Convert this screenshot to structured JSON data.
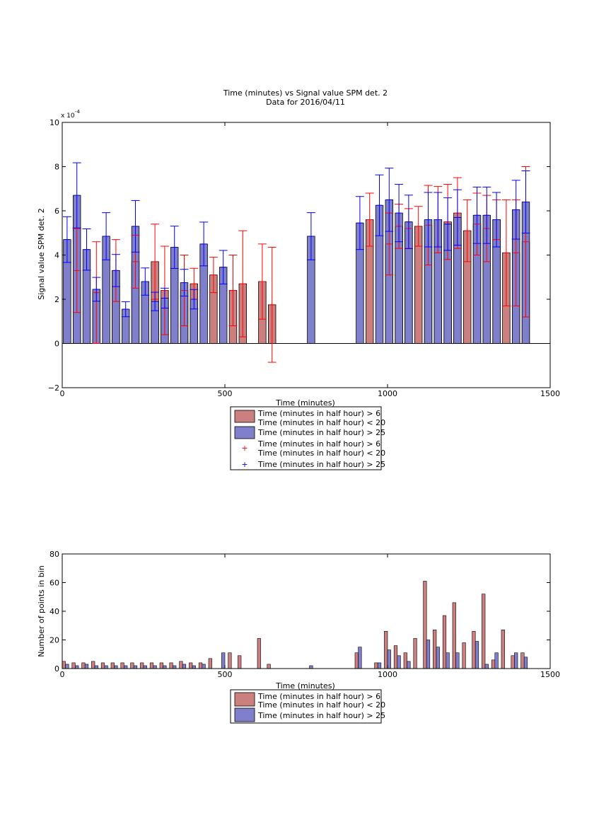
{
  "colors": {
    "red_fill": "#cc7f7f",
    "blue_fill": "#7f7fcc",
    "red_err": "#ff0000",
    "blue_err": "#0000ff"
  },
  "legend_items": {
    "red_bar": "Time (minutes in half hour) > 6",
    "mid_line": "Time (minutes in half hour) < 20",
    "blue_bar": "Time (minutes in half hour) > 25"
  },
  "chart_data": [
    {
      "type": "bar",
      "title": "Time (minutes) vs Signal value SPM det. 2",
      "subtitle": "Data for 2016/04/11",
      "xlabel": "Time (minutes)",
      "ylabel": "Signal value SPM det. 2",
      "exponent_label": "x 10",
      "exponent_power": "-4",
      "xlim": [
        0,
        1500
      ],
      "ylim": [
        -2,
        10
      ],
      "xticks": [
        "0",
        "500",
        "1000",
        "1500"
      ],
      "yticks": [
        "−2",
        "0",
        "2",
        "4",
        "6",
        "8",
        "10"
      ],
      "bar_width": 25,
      "series": [
        {
          "name": "Time (minutes in half hour) > 6",
          "color": "#cc7f7f",
          "x": [
            45,
            105,
            165,
            225,
            285,
            315,
            375,
            405,
            465,
            525,
            555,
            615,
            645,
            945,
            1005,
            1035,
            1065,
            1095,
            1125,
            1155,
            1185,
            1215,
            1245,
            1275,
            1305,
            1335,
            1365,
            1395,
            1425
          ],
          "values": [
            3.3,
            2.3,
            3.3,
            3.7,
            3.7,
            2.4,
            2.4,
            2.7,
            3.1,
            2.4,
            2.7,
            2.8,
            1.75,
            5.6,
            4.5,
            5.3,
            5.2,
            5.3,
            5.35,
            5.6,
            5.5,
            5.9,
            5.1,
            5.4,
            5.2,
            5.6,
            4.1,
            4.1,
            4.6
          ],
          "err": [
            1.9,
            2.3,
            1.4,
            1.2,
            1.7,
            2.0,
            1.6,
            0.7,
            0.8,
            1.6,
            2.4,
            1.7,
            2.6,
            1.2,
            1.4,
            1.0,
            0.9,
            0.9,
            1.8,
            1.5,
            1.7,
            1.6,
            1.4,
            1.4,
            1.5,
            0.9,
            2.4,
            2.4,
            3.4
          ]
        },
        {
          "name": "Time (minutes in half hour) > 25",
          "color": "#7f7fcc",
          "x": [
            15,
            45,
            75,
            105,
            135,
            165,
            195,
            225,
            255,
            285,
            315,
            345,
            375,
            405,
            435,
            495,
            765,
            915,
            975,
            1005,
            1035,
            1065,
            1125,
            1155,
            1185,
            1215,
            1275,
            1305,
            1335,
            1395,
            1425
          ],
          "values": [
            4.7,
            6.7,
            4.25,
            2.45,
            4.85,
            3.3,
            1.55,
            5.3,
            2.8,
            1.9,
            2.05,
            4.35,
            2.75,
            2.0,
            4.5,
            3.45,
            4.85,
            5.45,
            6.25,
            6.5,
            5.9,
            5.5,
            5.6,
            5.6,
            5.4,
            5.7,
            5.8,
            5.8,
            5.6,
            6.05,
            6.4
          ]
        }
      ]
    },
    {
      "type": "bar",
      "xlabel": "Time (minutes)",
      "ylabel": "Number of points in bin",
      "xlim": [
        0,
        1500
      ],
      "ylim": [
        0,
        80
      ],
      "xticks": [
        "0",
        "500",
        "1000",
        "1500"
      ],
      "yticks": [
        "0",
        "20",
        "40",
        "60",
        "80"
      ],
      "bar_width": 10,
      "series": [
        {
          "name": "Time (minutes in half hour) > 6",
          "color": "#cc7f7f",
          "x": [
            5,
            35,
            65,
            95,
            125,
            155,
            185,
            215,
            245,
            275,
            305,
            335,
            365,
            395,
            425,
            455,
            515,
            545,
            605,
            635,
            905,
            965,
            995,
            1025,
            1055,
            1085,
            1115,
            1145,
            1175,
            1205,
            1235,
            1265,
            1295,
            1325,
            1355,
            1385,
            1415
          ],
          "values": [
            5,
            4,
            4,
            5,
            4,
            4,
            4,
            4,
            4,
            4,
            4,
            4,
            5,
            4,
            4,
            7,
            11,
            9,
            21,
            3,
            11,
            4,
            26,
            16,
            11,
            21,
            61,
            27,
            37,
            46,
            18,
            26,
            52,
            6,
            27,
            9,
            11
          ]
        },
        {
          "name": "Time (minutes in half hour) > 25",
          "color": "#7f7fcc",
          "x": [
            15,
            45,
            75,
            105,
            135,
            165,
            195,
            225,
            255,
            285,
            315,
            345,
            375,
            405,
            435,
            495,
            765,
            915,
            975,
            1005,
            1035,
            1065,
            1125,
            1155,
            1185,
            1215,
            1275,
            1305,
            1335,
            1395,
            1425
          ],
          "values": [
            3,
            2,
            3,
            2,
            2,
            2,
            2,
            2,
            2,
            2,
            2,
            2,
            3,
            2,
            3,
            11,
            2,
            15,
            4,
            13,
            9,
            5,
            20,
            15,
            11,
            11,
            19,
            3,
            11,
            11,
            8
          ]
        }
      ]
    }
  ]
}
